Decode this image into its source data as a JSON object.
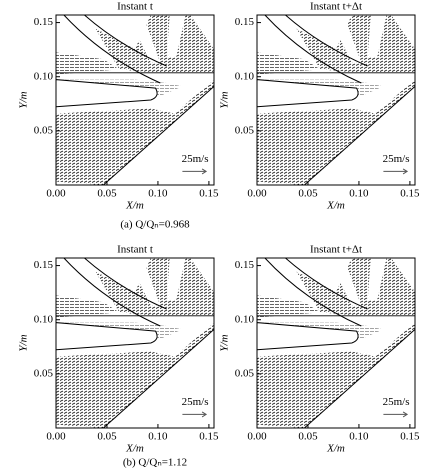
{
  "chart_data": [
    {
      "type": "quiver",
      "title": "Instant t",
      "xlabel": "X/m",
      "ylabel": "Y/m",
      "scale_label": "25m/s",
      "xlim": [
        0,
        0.155
      ],
      "ylim": [
        0,
        0.157
      ],
      "xticks": [
        {
          "value": 0,
          "label": "0.00"
        },
        {
          "value": 0.05,
          "label": "0.05"
        },
        {
          "value": 0.1,
          "label": "0.10"
        },
        {
          "value": 0.15,
          "label": "0.15"
        }
      ],
      "yticks": [
        {
          "value": 0.05,
          "label": "0.05"
        },
        {
          "value": 0.1,
          "label": "0.10"
        },
        {
          "value": 0.15,
          "label": "0.15"
        }
      ]
    },
    {
      "type": "quiver",
      "title": "Instant t+Δt",
      "xlabel": "X/m",
      "ylabel": "Y/m",
      "scale_label": "25m/s",
      "xlim": [
        0,
        0.155
      ],
      "ylim": [
        0,
        0.157
      ],
      "xticks": [
        {
          "value": 0,
          "label": "0.00"
        },
        {
          "value": 0.05,
          "label": "0.05"
        },
        {
          "value": 0.1,
          "label": "0.10"
        },
        {
          "value": 0.15,
          "label": "0.15"
        }
      ],
      "yticks": [
        {
          "value": 0.05,
          "label": "0.05"
        },
        {
          "value": 0.1,
          "label": "0.10"
        },
        {
          "value": 0.15,
          "label": "0.15"
        }
      ]
    },
    {
      "type": "quiver",
      "title": "Instant t",
      "xlabel": "X/m",
      "ylabel": "Y/m",
      "scale_label": "25m/s",
      "xlim": [
        0,
        0.155
      ],
      "ylim": [
        0,
        0.157
      ],
      "xticks": [
        {
          "value": 0,
          "label": "0.00"
        },
        {
          "value": 0.05,
          "label": "0.05"
        },
        {
          "value": 0.1,
          "label": "0.10"
        },
        {
          "value": 0.15,
          "label": "0.15"
        }
      ],
      "yticks": [
        {
          "value": 0.05,
          "label": "0.05"
        },
        {
          "value": 0.1,
          "label": "0.10"
        },
        {
          "value": 0.15,
          "label": "0.15"
        }
      ]
    },
    {
      "type": "quiver",
      "title": "Instant t+Δt",
      "xlabel": "X/m",
      "ylabel": "Y/m",
      "scale_label": "25m/s",
      "xlim": [
        0,
        0.155
      ],
      "ylim": [
        0,
        0.157
      ],
      "xticks": [
        {
          "value": 0,
          "label": "0.00"
        },
        {
          "value": 0.05,
          "label": "0.05"
        },
        {
          "value": 0.1,
          "label": "0.10"
        },
        {
          "value": 0.15,
          "label": "0.15"
        }
      ],
      "yticks": [
        {
          "value": 0.05,
          "label": "0.05"
        },
        {
          "value": 0.1,
          "label": "0.10"
        },
        {
          "value": 0.15,
          "label": "0.15"
        }
      ]
    }
  ],
  "captions": [
    "(a) Q/Qₙ=0.968",
    "(b) Q/Qₙ=1.12"
  ]
}
